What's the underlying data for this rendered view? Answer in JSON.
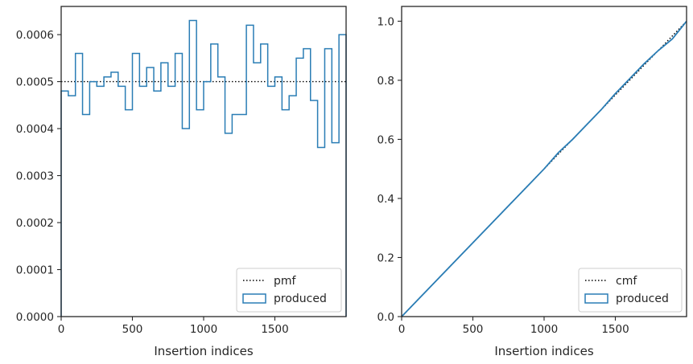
{
  "colors": {
    "hist": "#2a7db5",
    "reference": "#000000",
    "axes": "#262626"
  },
  "chart_data": [
    {
      "type": "histogram",
      "xlabel": "Insertion indices",
      "ylabel": "",
      "xlim": [
        0,
        2000
      ],
      "ylim": [
        0,
        0.00066
      ],
      "xticks": [
        0,
        500,
        1000,
        1500
      ],
      "xtick_labels": [
        "0",
        "500",
        "1000",
        "1500"
      ],
      "yticks": [
        0,
        0.0001,
        0.0002,
        0.0003,
        0.0004,
        0.0005,
        0.0006
      ],
      "ytick_labels": [
        "0.0000",
        "0.0001",
        "0.0002",
        "0.0003",
        "0.0004",
        "0.0005",
        "0.0006"
      ],
      "reference": {
        "label": "pmf",
        "value": 0.0005,
        "style": "dotted"
      },
      "series": [
        {
          "name": "produced",
          "bin_edges": [
            0,
            50,
            100,
            150,
            200,
            250,
            300,
            350,
            400,
            450,
            500,
            550,
            600,
            650,
            700,
            750,
            800,
            850,
            900,
            950,
            1000,
            1050,
            1100,
            1150,
            1200,
            1250,
            1300,
            1350,
            1400,
            1450,
            1500,
            1550,
            1600,
            1650,
            1700,
            1750,
            1800,
            1850,
            1900,
            1950,
            2000
          ],
          "values": [
            0.00048,
            0.00047,
            0.00056,
            0.00043,
            0.0005,
            0.00049,
            0.00051,
            0.00052,
            0.00049,
            0.00044,
            0.00056,
            0.00049,
            0.00053,
            0.00048,
            0.00054,
            0.00049,
            0.00056,
            0.0004,
            0.00063,
            0.00044,
            0.0005,
            0.00058,
            0.00051,
            0.00039,
            0.00043,
            0.00043,
            0.00062,
            0.00054,
            0.00058,
            0.00049,
            0.00051,
            0.00044,
            0.00047,
            0.00055,
            0.00057,
            0.00046,
            0.00036,
            0.00057,
            0.00037,
            0.0006
          ]
        }
      ],
      "legend": {
        "position": "lower-right",
        "entries": [
          "pmf",
          "produced"
        ]
      }
    },
    {
      "type": "line",
      "xlabel": "Insertion indices",
      "ylabel": "",
      "xlim": [
        0,
        2000
      ],
      "ylim": [
        0,
        1.05
      ],
      "xticks": [
        0,
        500,
        1000,
        1500
      ],
      "xtick_labels": [
        "0",
        "500",
        "1000",
        "1500"
      ],
      "yticks": [
        0,
        0.2,
        0.4,
        0.6,
        0.8,
        1.0
      ],
      "ytick_labels": [
        "0.0",
        "0.2",
        "0.4",
        "0.6",
        "0.8",
        "1.0"
      ],
      "reference": {
        "label": "cmf",
        "x": [
          0,
          2000
        ],
        "y": [
          0,
          1.0
        ],
        "style": "dotted"
      },
      "series": [
        {
          "name": "produced",
          "x": [
            0,
            100,
            200,
            300,
            400,
            500,
            600,
            700,
            800,
            900,
            1000,
            1100,
            1200,
            1300,
            1400,
            1500,
            1600,
            1700,
            1800,
            1900,
            2000
          ],
          "y": [
            0,
            0.05,
            0.1,
            0.15,
            0.2,
            0.25,
            0.3,
            0.35,
            0.4,
            0.45,
            0.5,
            0.555,
            0.6,
            0.65,
            0.7,
            0.755,
            0.805,
            0.855,
            0.9,
            0.94,
            1.0
          ]
        }
      ],
      "legend": {
        "position": "lower-right",
        "entries": [
          "cmf",
          "produced"
        ]
      }
    }
  ]
}
